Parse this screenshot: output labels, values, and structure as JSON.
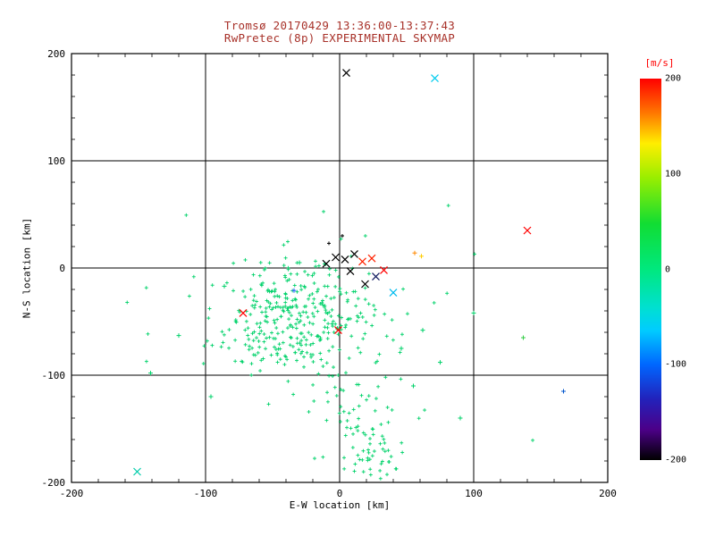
{
  "page": {
    "background": "#ffffff"
  },
  "title": {
    "line1": "Tromsø 20170429 13:36:00-13:37:43",
    "line2": "RwPretec (8p) EXPERIMENTAL SKYMAP",
    "color": "#a8322a"
  },
  "chart_data": {
    "type": "scatter",
    "title": "Tromsø 20170429 13:36:00-13:37:43",
    "subtitle": "RwPretec (8p) EXPERIMENTAL SKYMAP",
    "xlabel": "E-W location [km]",
    "ylabel": "N-S location [km]",
    "xlim": [
      -200,
      200
    ],
    "ylim": [
      -200,
      200
    ],
    "xticks": [
      -200,
      -100,
      0,
      100,
      200
    ],
    "yticks": [
      -200,
      -100,
      0,
      100,
      200
    ],
    "grid": true,
    "axis_color": "#000000",
    "dominant_point_color": "#00d26a",
    "colorbar": {
      "label": "[m/s]",
      "label_color": "#ff0000",
      "ticks": [
        200,
        100,
        0,
        -100,
        -200
      ],
      "gradient_stops": [
        {
          "pos": 0,
          "color": "#ff0000"
        },
        {
          "pos": 9,
          "color": "#ff7700"
        },
        {
          "pos": 17,
          "color": "#ffee00"
        },
        {
          "pos": 26,
          "color": "#99ee00"
        },
        {
          "pos": 38,
          "color": "#11dd33"
        },
        {
          "pos": 50,
          "color": "#00e87e"
        },
        {
          "pos": 60,
          "color": "#00e0d0"
        },
        {
          "pos": 66,
          "color": "#00ccff"
        },
        {
          "pos": 75,
          "color": "#0066ff"
        },
        {
          "pos": 84,
          "color": "#2222bb"
        },
        {
          "pos": 92,
          "color": "#4c0088"
        },
        {
          "pos": 100,
          "color": "#000000"
        }
      ]
    },
    "clusters": [
      {
        "count": 320,
        "cx": -33,
        "cy": -45,
        "sx": 30,
        "sy": 25,
        "seed": 42,
        "color": "#00d26a",
        "marker": "+",
        "size": 2
      },
      {
        "count": 70,
        "cx": 15,
        "cy": -138,
        "sx": 16,
        "sy": 32,
        "seed": 7,
        "color": "#00d26a",
        "marker": "+",
        "size": 2
      },
      {
        "count": 50,
        "cx": -25,
        "cy": -55,
        "sx": 70,
        "sy": 48,
        "seed": 99,
        "color": "#00d26a",
        "marker": "+",
        "size": 2
      },
      {
        "count": 25,
        "cx": 22,
        "cy": -178,
        "sx": 10,
        "sy": 12,
        "seed": 5,
        "color": "#00d26a",
        "marker": "+",
        "size": 2
      }
    ],
    "points": [
      {
        "x": 5,
        "y": 182,
        "c": "#000000",
        "m": "x"
      },
      {
        "x": 71,
        "y": 177,
        "c": "#00ccee",
        "m": "x"
      },
      {
        "x": 140,
        "y": 35,
        "c": "#ff0000",
        "m": "x"
      },
      {
        "x": -10,
        "y": 4,
        "c": "#000000",
        "m": "x"
      },
      {
        "x": -3,
        "y": 10,
        "c": "#000000",
        "m": "x"
      },
      {
        "x": 4,
        "y": 8,
        "c": "#000000",
        "m": "x"
      },
      {
        "x": 11,
        "y": 13,
        "c": "#000000",
        "m": "x"
      },
      {
        "x": 8,
        "y": -3,
        "c": "#000000",
        "m": "x"
      },
      {
        "x": 17,
        "y": 6,
        "c": "#ff2200",
        "m": "x"
      },
      {
        "x": 24,
        "y": 9,
        "c": "#ff2200",
        "m": "x"
      },
      {
        "x": 33,
        "y": -2,
        "c": "#ff0000",
        "m": "x"
      },
      {
        "x": 27,
        "y": -8,
        "c": "#101c60",
        "m": "x"
      },
      {
        "x": 19,
        "y": -15,
        "c": "#000000",
        "m": "x"
      },
      {
        "x": 40,
        "y": -23,
        "c": "#00bbee",
        "m": "x"
      },
      {
        "x": -72,
        "y": -42,
        "c": "#ff0000",
        "m": "x"
      },
      {
        "x": -1,
        "y": -58,
        "c": "#ff0000",
        "m": "x"
      },
      {
        "x": -151,
        "y": -190,
        "c": "#00ccaa",
        "m": "x"
      },
      {
        "x": 56,
        "y": 14,
        "c": "#ff8800",
        "m": "+",
        "s": 2.5
      },
      {
        "x": 61,
        "y": 11,
        "c": "#ffcc00",
        "m": "+",
        "s": 2.5
      },
      {
        "x": -34,
        "y": -21,
        "c": "#2255ff",
        "m": "+",
        "s": 2.5
      },
      {
        "x": 167,
        "y": -115,
        "c": "#0055cc",
        "m": "+",
        "s": 2.5
      },
      {
        "x": 137,
        "y": -65,
        "c": "#33cc44",
        "m": "+",
        "s": 2.5
      },
      {
        "x": 100,
        "y": -42,
        "c": "#00d26a",
        "m": "+",
        "s": 2.5
      },
      {
        "x": 62,
        "y": -58,
        "c": "#00d26a",
        "m": "+",
        "s": 2.5
      },
      {
        "x": 75,
        "y": -88,
        "c": "#00d26a",
        "m": "+",
        "s": 2.5
      },
      {
        "x": 90,
        "y": -140,
        "c": "#00d26a",
        "m": "+",
        "s": 2.5
      },
      {
        "x": -120,
        "y": -63,
        "c": "#00d26a",
        "m": "+",
        "s": 2.5
      },
      {
        "x": -141,
        "y": -98,
        "c": "#00d26a",
        "m": "+",
        "s": 2.5
      },
      {
        "x": -96,
        "y": -120,
        "c": "#00d26a",
        "m": "+",
        "s": 2.5
      },
      {
        "x": -86,
        "y": -17,
        "c": "#00d26a",
        "m": "+",
        "s": 2.5
      },
      {
        "x": -30,
        "y": 5,
        "c": "#00d26a",
        "m": "+",
        "s": 2.5
      },
      {
        "x": -8,
        "y": 23,
        "c": "#000000",
        "m": "+",
        "s": 2
      },
      {
        "x": 2,
        "y": 30,
        "c": "#000000",
        "m": "+",
        "s": 2
      },
      {
        "x": 46,
        "y": -75,
        "c": "#00d26a",
        "m": "+",
        "s": 2.5
      },
      {
        "x": 55,
        "y": -110,
        "c": "#00d26a",
        "m": "+",
        "s": 2.5
      }
    ]
  }
}
